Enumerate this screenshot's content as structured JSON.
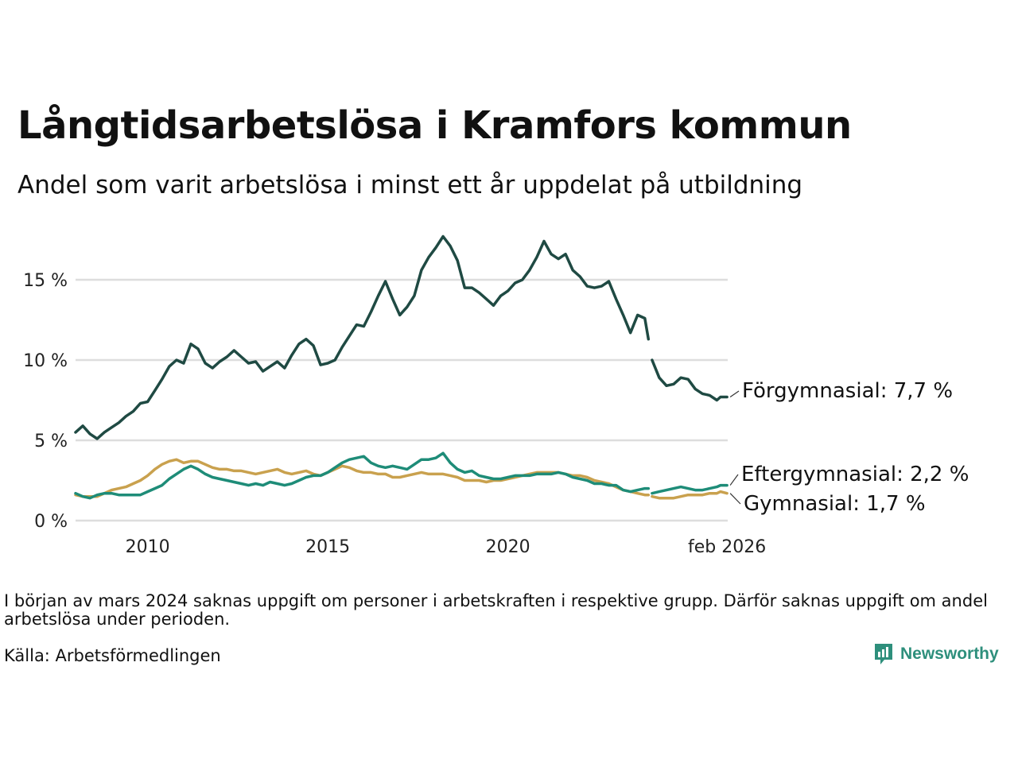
{
  "title": "Långtidsarbetslösa i Kramfors kommun",
  "subtitle": "Andel som varit arbetslösa i minst ett år uppdelat på utbildning",
  "note": "I början av mars 2024 saknas uppgift om personer i arbetskraften i respektive grupp. Därför saknas uppgift om andel arbetslösa under perioden.",
  "source": "Källa: Arbetsförmedlingen",
  "logo_text": "Newsworthy",
  "chart_data": {
    "type": "line",
    "title": "Långtidsarbetslösa i Kramfors kommun",
    "ylabel": "",
    "xlabel": "",
    "ylim": [
      0,
      18
    ],
    "xlim": [
      2008.0,
      2026.1
    ],
    "yticks": [
      {
        "value": 0,
        "label": "0 %"
      },
      {
        "value": 5,
        "label": "5 %"
      },
      {
        "value": 10,
        "label": "10 %"
      },
      {
        "value": 15,
        "label": "15 %"
      }
    ],
    "xticks": [
      {
        "value": 2010,
        "label": "2010"
      },
      {
        "value": 2015,
        "label": "2015"
      },
      {
        "value": 2020,
        "label": "2020"
      },
      {
        "value": 2026.08,
        "label": "feb 2026"
      }
    ],
    "gap": [
      2023.9,
      2024.0
    ],
    "series": [
      {
        "name": "Förgymnasial",
        "end_label": "Förgymnasial: 7,7 %",
        "color": "#1f4a43",
        "points": [
          [
            2008.0,
            5.5
          ],
          [
            2008.2,
            5.9
          ],
          [
            2008.4,
            5.4
          ],
          [
            2008.6,
            5.1
          ],
          [
            2008.8,
            5.5
          ],
          [
            2009.0,
            5.8
          ],
          [
            2009.2,
            6.1
          ],
          [
            2009.4,
            6.5
          ],
          [
            2009.6,
            6.8
          ],
          [
            2009.8,
            7.3
          ],
          [
            2010.0,
            7.4
          ],
          [
            2010.2,
            8.1
          ],
          [
            2010.4,
            8.8
          ],
          [
            2010.6,
            9.6
          ],
          [
            2010.8,
            10.0
          ],
          [
            2011.0,
            9.8
          ],
          [
            2011.2,
            11.0
          ],
          [
            2011.4,
            10.7
          ],
          [
            2011.6,
            9.8
          ],
          [
            2011.8,
            9.5
          ],
          [
            2012.0,
            9.9
          ],
          [
            2012.2,
            10.2
          ],
          [
            2012.4,
            10.6
          ],
          [
            2012.6,
            10.2
          ],
          [
            2012.8,
            9.8
          ],
          [
            2013.0,
            9.9
          ],
          [
            2013.2,
            9.3
          ],
          [
            2013.4,
            9.6
          ],
          [
            2013.6,
            9.9
          ],
          [
            2013.8,
            9.5
          ],
          [
            2014.0,
            10.3
          ],
          [
            2014.2,
            11.0
          ],
          [
            2014.4,
            11.3
          ],
          [
            2014.6,
            10.9
          ],
          [
            2014.8,
            9.7
          ],
          [
            2015.0,
            9.8
          ],
          [
            2015.2,
            10.0
          ],
          [
            2015.4,
            10.8
          ],
          [
            2015.6,
            11.5
          ],
          [
            2015.8,
            12.2
          ],
          [
            2016.0,
            12.1
          ],
          [
            2016.2,
            13.0
          ],
          [
            2016.4,
            14.0
          ],
          [
            2016.6,
            14.9
          ],
          [
            2016.8,
            13.8
          ],
          [
            2017.0,
            12.8
          ],
          [
            2017.2,
            13.3
          ],
          [
            2017.4,
            14.0
          ],
          [
            2017.6,
            15.6
          ],
          [
            2017.8,
            16.4
          ],
          [
            2018.0,
            17.0
          ],
          [
            2018.2,
            17.7
          ],
          [
            2018.4,
            17.1
          ],
          [
            2018.6,
            16.2
          ],
          [
            2018.8,
            14.5
          ],
          [
            2019.0,
            14.5
          ],
          [
            2019.2,
            14.2
          ],
          [
            2019.4,
            13.8
          ],
          [
            2019.6,
            13.4
          ],
          [
            2019.8,
            14.0
          ],
          [
            2020.0,
            14.3
          ],
          [
            2020.2,
            14.8
          ],
          [
            2020.4,
            15.0
          ],
          [
            2020.6,
            15.6
          ],
          [
            2020.8,
            16.4
          ],
          [
            2021.0,
            17.4
          ],
          [
            2021.2,
            16.6
          ],
          [
            2021.4,
            16.3
          ],
          [
            2021.6,
            16.6
          ],
          [
            2021.8,
            15.6
          ],
          [
            2022.0,
            15.2
          ],
          [
            2022.2,
            14.6
          ],
          [
            2022.4,
            14.5
          ],
          [
            2022.6,
            14.6
          ],
          [
            2022.8,
            14.9
          ],
          [
            2023.0,
            13.8
          ],
          [
            2023.2,
            12.8
          ],
          [
            2023.4,
            11.7
          ],
          [
            2023.6,
            12.8
          ],
          [
            2023.8,
            12.6
          ],
          [
            2023.9,
            11.3
          ],
          null,
          [
            2024.0,
            10.0
          ],
          [
            2024.2,
            8.9
          ],
          [
            2024.4,
            8.4
          ],
          [
            2024.6,
            8.5
          ],
          [
            2024.8,
            8.9
          ],
          [
            2025.0,
            8.8
          ],
          [
            2025.2,
            8.2
          ],
          [
            2025.4,
            7.9
          ],
          [
            2025.6,
            7.8
          ],
          [
            2025.8,
            7.5
          ],
          [
            2025.9,
            7.7
          ],
          [
            2026.08,
            7.7
          ]
        ]
      },
      {
        "name": "Eftergymnasial",
        "end_label": "Eftergymnasial: 2,2 %",
        "color": "#1e8c78",
        "points": [
          [
            2008.0,
            1.7
          ],
          [
            2008.2,
            1.5
          ],
          [
            2008.4,
            1.4
          ],
          [
            2008.6,
            1.6
          ],
          [
            2008.8,
            1.7
          ],
          [
            2009.0,
            1.7
          ],
          [
            2009.2,
            1.6
          ],
          [
            2009.4,
            1.6
          ],
          [
            2009.6,
            1.6
          ],
          [
            2009.8,
            1.6
          ],
          [
            2010.0,
            1.8
          ],
          [
            2010.2,
            2.0
          ],
          [
            2010.4,
            2.2
          ],
          [
            2010.6,
            2.6
          ],
          [
            2010.8,
            2.9
          ],
          [
            2011.0,
            3.2
          ],
          [
            2011.2,
            3.4
          ],
          [
            2011.4,
            3.2
          ],
          [
            2011.6,
            2.9
          ],
          [
            2011.8,
            2.7
          ],
          [
            2012.0,
            2.6
          ],
          [
            2012.2,
            2.5
          ],
          [
            2012.4,
            2.4
          ],
          [
            2012.6,
            2.3
          ],
          [
            2012.8,
            2.2
          ],
          [
            2013.0,
            2.3
          ],
          [
            2013.2,
            2.2
          ],
          [
            2013.4,
            2.4
          ],
          [
            2013.6,
            2.3
          ],
          [
            2013.8,
            2.2
          ],
          [
            2014.0,
            2.3
          ],
          [
            2014.2,
            2.5
          ],
          [
            2014.4,
            2.7
          ],
          [
            2014.6,
            2.8
          ],
          [
            2014.8,
            2.8
          ],
          [
            2015.0,
            3.0
          ],
          [
            2015.2,
            3.3
          ],
          [
            2015.4,
            3.6
          ],
          [
            2015.6,
            3.8
          ],
          [
            2015.8,
            3.9
          ],
          [
            2016.0,
            4.0
          ],
          [
            2016.2,
            3.6
          ],
          [
            2016.4,
            3.4
          ],
          [
            2016.6,
            3.3
          ],
          [
            2016.8,
            3.4
          ],
          [
            2017.0,
            3.3
          ],
          [
            2017.2,
            3.2
          ],
          [
            2017.4,
            3.5
          ],
          [
            2017.6,
            3.8
          ],
          [
            2017.8,
            3.8
          ],
          [
            2018.0,
            3.9
          ],
          [
            2018.2,
            4.2
          ],
          [
            2018.4,
            3.6
          ],
          [
            2018.6,
            3.2
          ],
          [
            2018.8,
            3.0
          ],
          [
            2019.0,
            3.1
          ],
          [
            2019.2,
            2.8
          ],
          [
            2019.4,
            2.7
          ],
          [
            2019.6,
            2.6
          ],
          [
            2019.8,
            2.6
          ],
          [
            2020.0,
            2.7
          ],
          [
            2020.2,
            2.8
          ],
          [
            2020.4,
            2.8
          ],
          [
            2020.6,
            2.8
          ],
          [
            2020.8,
            2.9
          ],
          [
            2021.0,
            2.9
          ],
          [
            2021.2,
            2.9
          ],
          [
            2021.4,
            3.0
          ],
          [
            2021.6,
            2.9
          ],
          [
            2021.8,
            2.7
          ],
          [
            2022.0,
            2.6
          ],
          [
            2022.2,
            2.5
          ],
          [
            2022.4,
            2.3
          ],
          [
            2022.6,
            2.3
          ],
          [
            2022.8,
            2.2
          ],
          [
            2023.0,
            2.2
          ],
          [
            2023.2,
            1.9
          ],
          [
            2023.4,
            1.8
          ],
          [
            2023.6,
            1.9
          ],
          [
            2023.8,
            2.0
          ],
          [
            2023.9,
            2.0
          ],
          null,
          [
            2024.0,
            1.7
          ],
          [
            2024.2,
            1.8
          ],
          [
            2024.4,
            1.9
          ],
          [
            2024.6,
            2.0
          ],
          [
            2024.8,
            2.1
          ],
          [
            2025.0,
            2.0
          ],
          [
            2025.2,
            1.9
          ],
          [
            2025.4,
            1.9
          ],
          [
            2025.6,
            2.0
          ],
          [
            2025.8,
            2.1
          ],
          [
            2025.9,
            2.2
          ],
          [
            2026.08,
            2.2
          ]
        ]
      },
      {
        "name": "Gymnasial",
        "end_label": "Gymnasial: 1,7 %",
        "color": "#c9a14e",
        "points": [
          [
            2008.0,
            1.6
          ],
          [
            2008.2,
            1.5
          ],
          [
            2008.4,
            1.5
          ],
          [
            2008.6,
            1.5
          ],
          [
            2008.8,
            1.7
          ],
          [
            2009.0,
            1.9
          ],
          [
            2009.2,
            2.0
          ],
          [
            2009.4,
            2.1
          ],
          [
            2009.6,
            2.3
          ],
          [
            2009.8,
            2.5
          ],
          [
            2010.0,
            2.8
          ],
          [
            2010.2,
            3.2
          ],
          [
            2010.4,
            3.5
          ],
          [
            2010.6,
            3.7
          ],
          [
            2010.8,
            3.8
          ],
          [
            2011.0,
            3.6
          ],
          [
            2011.2,
            3.7
          ],
          [
            2011.4,
            3.7
          ],
          [
            2011.6,
            3.5
          ],
          [
            2011.8,
            3.3
          ],
          [
            2012.0,
            3.2
          ],
          [
            2012.2,
            3.2
          ],
          [
            2012.4,
            3.1
          ],
          [
            2012.6,
            3.1
          ],
          [
            2012.8,
            3.0
          ],
          [
            2013.0,
            2.9
          ],
          [
            2013.2,
            3.0
          ],
          [
            2013.4,
            3.1
          ],
          [
            2013.6,
            3.2
          ],
          [
            2013.8,
            3.0
          ],
          [
            2014.0,
            2.9
          ],
          [
            2014.2,
            3.0
          ],
          [
            2014.4,
            3.1
          ],
          [
            2014.6,
            2.9
          ],
          [
            2014.8,
            2.8
          ],
          [
            2015.0,
            3.0
          ],
          [
            2015.2,
            3.2
          ],
          [
            2015.4,
            3.4
          ],
          [
            2015.6,
            3.3
          ],
          [
            2015.8,
            3.1
          ],
          [
            2016.0,
            3.0
          ],
          [
            2016.2,
            3.0
          ],
          [
            2016.4,
            2.9
          ],
          [
            2016.6,
            2.9
          ],
          [
            2016.8,
            2.7
          ],
          [
            2017.0,
            2.7
          ],
          [
            2017.2,
            2.8
          ],
          [
            2017.4,
            2.9
          ],
          [
            2017.6,
            3.0
          ],
          [
            2017.8,
            2.9
          ],
          [
            2018.0,
            2.9
          ],
          [
            2018.2,
            2.9
          ],
          [
            2018.4,
            2.8
          ],
          [
            2018.6,
            2.7
          ],
          [
            2018.8,
            2.5
          ],
          [
            2019.0,
            2.5
          ],
          [
            2019.2,
            2.5
          ],
          [
            2019.4,
            2.4
          ],
          [
            2019.6,
            2.5
          ],
          [
            2019.8,
            2.5
          ],
          [
            2020.0,
            2.6
          ],
          [
            2020.2,
            2.7
          ],
          [
            2020.4,
            2.8
          ],
          [
            2020.6,
            2.9
          ],
          [
            2020.8,
            3.0
          ],
          [
            2021.0,
            3.0
          ],
          [
            2021.2,
            3.0
          ],
          [
            2021.4,
            3.0
          ],
          [
            2021.6,
            2.9
          ],
          [
            2021.8,
            2.8
          ],
          [
            2022.0,
            2.8
          ],
          [
            2022.2,
            2.7
          ],
          [
            2022.4,
            2.5
          ],
          [
            2022.6,
            2.4
          ],
          [
            2022.8,
            2.3
          ],
          [
            2023.0,
            2.1
          ],
          [
            2023.2,
            1.9
          ],
          [
            2023.4,
            1.8
          ],
          [
            2023.6,
            1.7
          ],
          [
            2023.8,
            1.6
          ],
          [
            2023.9,
            1.6
          ],
          null,
          [
            2024.0,
            1.5
          ],
          [
            2024.2,
            1.4
          ],
          [
            2024.4,
            1.4
          ],
          [
            2024.6,
            1.4
          ],
          [
            2024.8,
            1.5
          ],
          [
            2025.0,
            1.6
          ],
          [
            2025.2,
            1.6
          ],
          [
            2025.4,
            1.6
          ],
          [
            2025.6,
            1.7
          ],
          [
            2025.8,
            1.7
          ],
          [
            2025.9,
            1.8
          ],
          [
            2026.08,
            1.7
          ]
        ]
      }
    ]
  }
}
